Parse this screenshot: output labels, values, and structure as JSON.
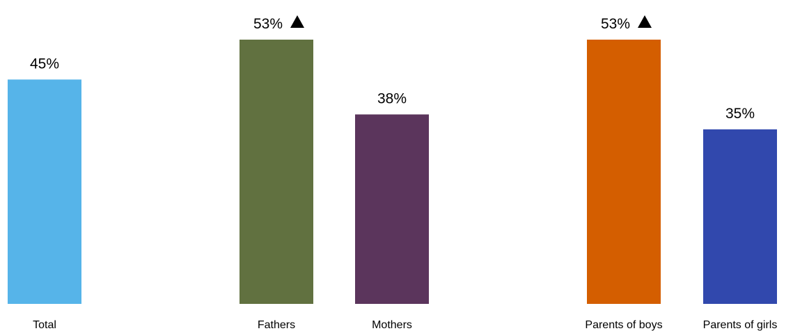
{
  "chart_data": {
    "type": "bar",
    "categories": [
      "Total",
      "Fathers",
      "Mothers",
      "Parents of boys",
      "Parents of girls"
    ],
    "values": [
      45,
      53,
      38,
      53,
      35
    ],
    "value_labels": [
      "45%",
      "53%",
      "38%",
      "53%",
      "35%"
    ],
    "significance_markers": [
      false,
      true,
      false,
      true,
      false
    ],
    "marker_symbol": "triangle-up",
    "bar_colors": [
      "#56b4e9",
      "#617140",
      "#5b355c",
      "#d45e00",
      "#3148ad"
    ],
    "ylim": [
      0,
      60
    ],
    "grid": false,
    "legend": "none"
  }
}
